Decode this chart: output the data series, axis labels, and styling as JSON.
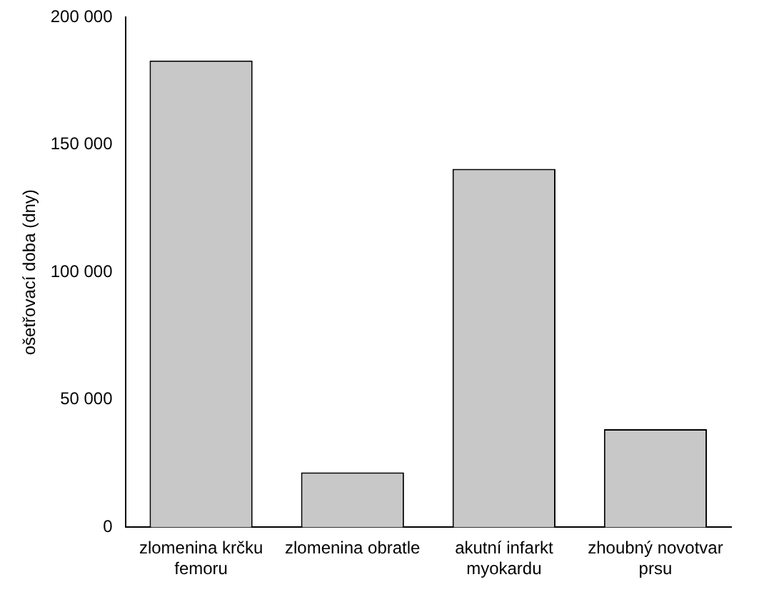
{
  "chart_data": {
    "type": "bar",
    "ylabel": "ošetřovací doba (dny)",
    "categories": [
      "zlomenina krčku femoru",
      "zlomenina obratle",
      "akutní infarkt myokardu",
      "zhoubný novotvar prsu"
    ],
    "values": [
      183000,
      21500,
      140500,
      38500
    ],
    "color": "#c8c8c8",
    "ylim": [
      0,
      200000
    ],
    "yticks": [
      0,
      {
        "value": 50000,
        "label": "50 000"
      },
      {
        "value": 100000,
        "label": "100 000"
      },
      {
        "value": 150000,
        "label": "150 000"
      },
      {
        "value": 200000,
        "label": "200 000"
      }
    ],
    "grid": false,
    "legend": false
  }
}
